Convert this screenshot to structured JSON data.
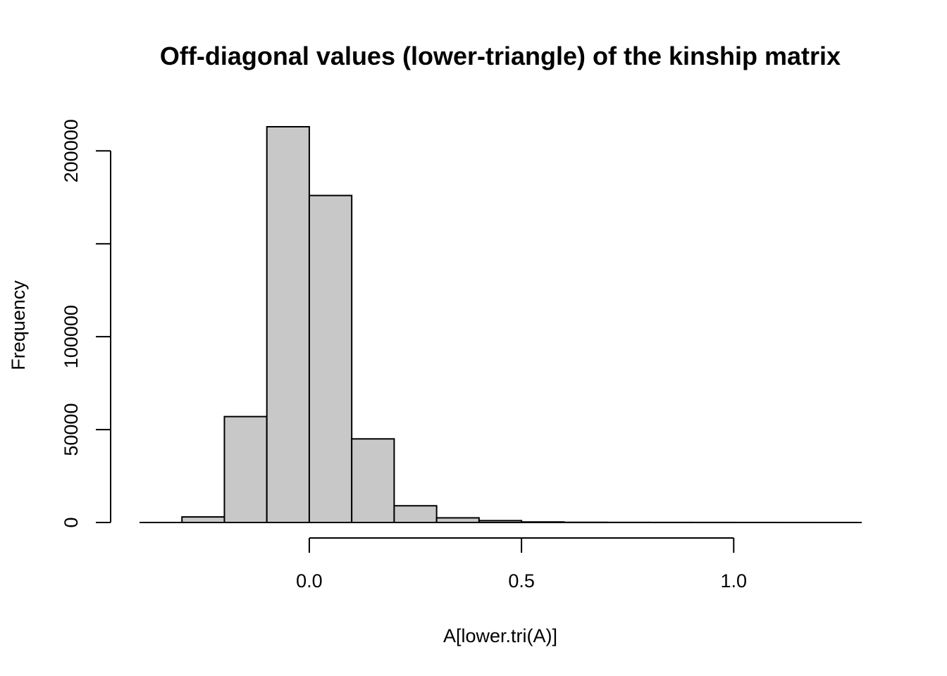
{
  "chart_data": {
    "type": "bar",
    "title": "Off-diagonal values (lower-triangle) of the kinship matrix",
    "xlabel": "A[lower.tri(A)]",
    "ylabel": "Frequency",
    "bin_width": 0.1,
    "bins": [
      {
        "x0": -0.3,
        "x1": -0.2,
        "count": 3000
      },
      {
        "x0": -0.2,
        "x1": -0.1,
        "count": 57000
      },
      {
        "x0": -0.1,
        "x1": 0.0,
        "count": 213000
      },
      {
        "x0": 0.0,
        "x1": 0.1,
        "count": 176000
      },
      {
        "x0": 0.1,
        "x1": 0.2,
        "count": 45000
      },
      {
        "x0": 0.2,
        "x1": 0.3,
        "count": 9000
      },
      {
        "x0": 0.3,
        "x1": 0.4,
        "count": 2500
      },
      {
        "x0": 0.4,
        "x1": 0.5,
        "count": 1000
      },
      {
        "x0": 0.5,
        "x1": 0.6,
        "count": 300
      },
      {
        "x0": 0.6,
        "x1": 0.7,
        "count": 100
      },
      {
        "x0": 0.7,
        "x1": 0.8,
        "count": 60
      },
      {
        "x0": 0.8,
        "x1": 0.9,
        "count": 40
      },
      {
        "x0": 0.9,
        "x1": 1.0,
        "count": 30
      },
      {
        "x0": 1.0,
        "x1": 1.1,
        "count": 20
      },
      {
        "x0": 1.1,
        "x1": 1.2,
        "count": 10
      },
      {
        "x0": 1.2,
        "x1": 1.3,
        "count": 5
      }
    ],
    "xlim": [
      -0.4,
      1.3
    ],
    "ylim": [
      0,
      213000
    ],
    "xticks": [
      0.0,
      0.5,
      1.0
    ],
    "xtick_labels": [
      "0.0",
      "0.5",
      "1.0"
    ],
    "yticks": [
      0,
      50000,
      100000,
      150000,
      200000
    ],
    "ytick_labels": [
      "0",
      "50000",
      "100000",
      "",
      "200000"
    ],
    "bar_color": "#c8c8c8",
    "grid": false,
    "legend": false
  }
}
